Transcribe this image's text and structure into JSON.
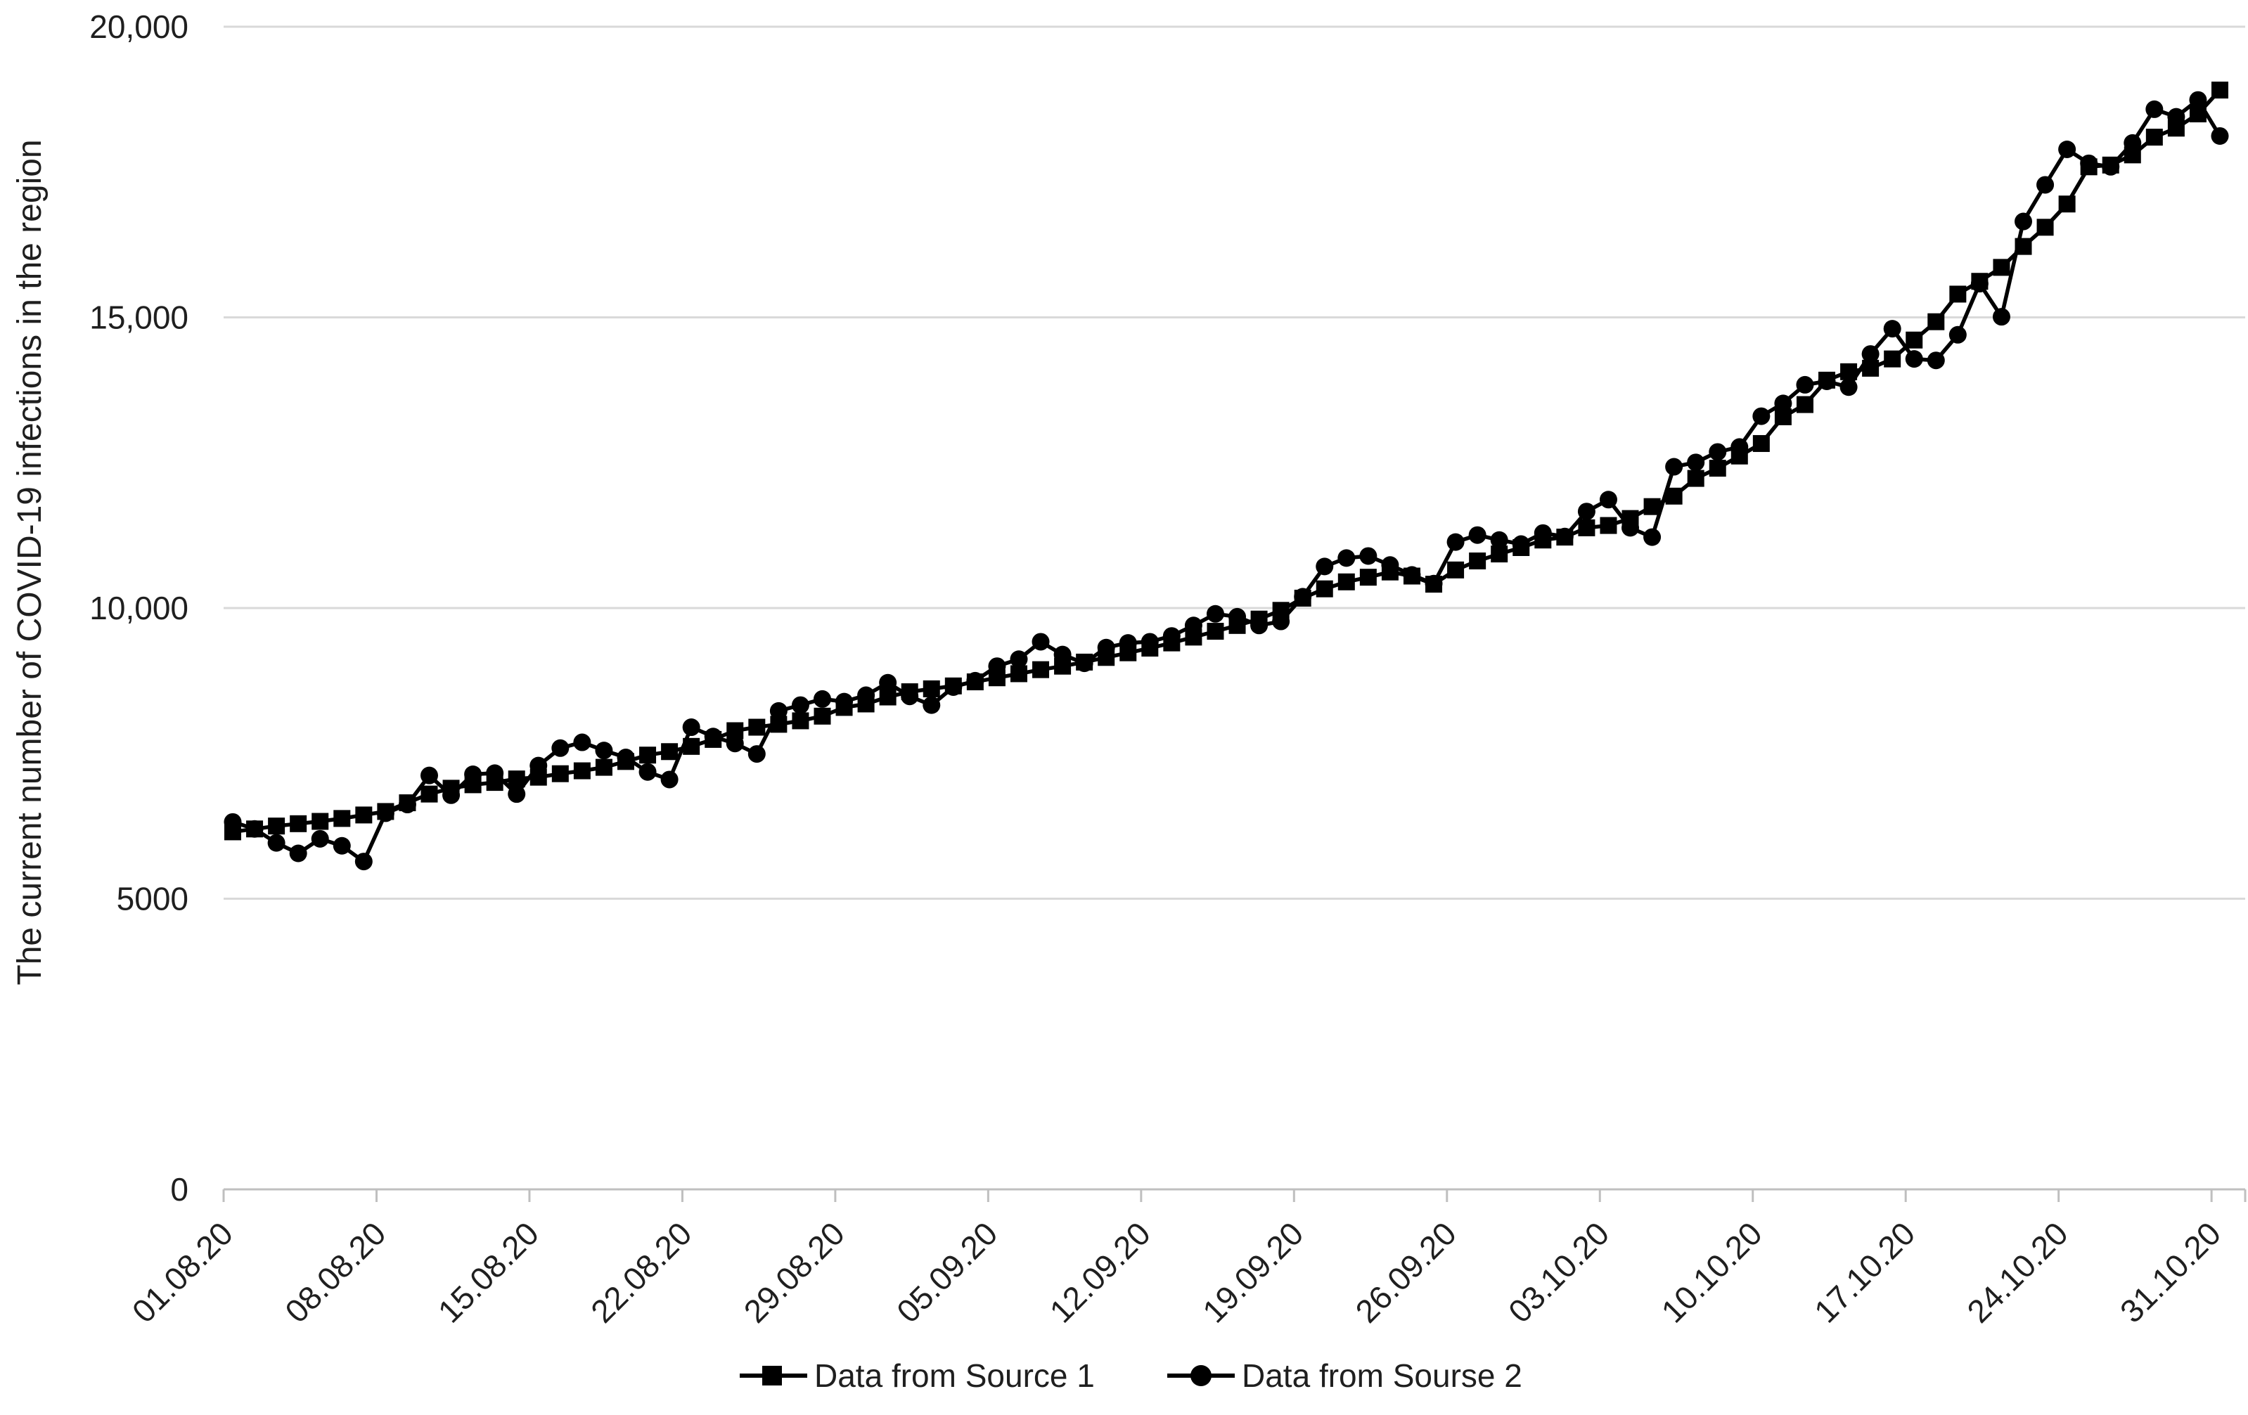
{
  "figure": {
    "background": "#ffffff",
    "series_color": "#000000",
    "gridline_color": "#d9d9d9",
    "axis_color": "#bfbfbf",
    "text_color": "#1f1f1f"
  },
  "legend": {
    "item1": "Data from Source 1",
    "item2": "Data from Sourse 2",
    "item1_marker": "square-icon",
    "item2_marker": "circle-icon"
  },
  "chart_data": {
    "type": "line",
    "title": "",
    "xlabel": "",
    "ylabel": "The current number of COVID-19 infections in the region",
    "ylim": [
      0,
      20000
    ],
    "grid": "horizontal",
    "legend_position": "bottom-center",
    "y_ticks": [
      {
        "value": 0,
        "label": "0"
      },
      {
        "value": 5000,
        "label": "5000"
      },
      {
        "value": 10000,
        "label": "10,000"
      },
      {
        "value": 15000,
        "label": "15,000"
      },
      {
        "value": 20000,
        "label": "20,000"
      }
    ],
    "x_tick_labels": [
      "01.08.20",
      "08.08.20",
      "15.08.20",
      "22.08.20",
      "29.08.20",
      "05.09.20",
      "12.09.20",
      "19.09.20",
      "26.09.20",
      "03.10.20",
      "10.10.20",
      "17.10.20",
      "24.10.20",
      "31.10.20"
    ],
    "x_tick_interval_days": 7,
    "x": [
      "01.08.20",
      "02.08.20",
      "03.08.20",
      "04.08.20",
      "05.08.20",
      "06.08.20",
      "07.08.20",
      "08.08.20",
      "09.08.20",
      "10.08.20",
      "11.08.20",
      "12.08.20",
      "13.08.20",
      "14.08.20",
      "15.08.20",
      "16.08.20",
      "17.08.20",
      "18.08.20",
      "19.08.20",
      "20.08.20",
      "21.08.20",
      "22.08.20",
      "23.08.20",
      "24.08.20",
      "25.08.20",
      "26.08.20",
      "27.08.20",
      "28.08.20",
      "29.08.20",
      "30.08.20",
      "31.08.20",
      "01.09.20",
      "02.09.20",
      "03.09.20",
      "04.09.20",
      "05.09.20",
      "06.09.20",
      "07.09.20",
      "08.09.20",
      "09.09.20",
      "10.09.20",
      "11.09.20",
      "12.09.20",
      "13.09.20",
      "14.09.20",
      "15.09.20",
      "16.09.20",
      "17.09.20",
      "18.09.20",
      "19.09.20",
      "20.09.20",
      "21.09.20",
      "22.09.20",
      "23.09.20",
      "24.09.20",
      "25.09.20",
      "26.09.20",
      "27.09.20",
      "28.09.20",
      "29.09.20",
      "30.09.20",
      "01.10.20",
      "02.10.20",
      "03.10.20",
      "04.10.20",
      "05.10.20",
      "06.10.20",
      "07.10.20",
      "08.10.20",
      "09.10.20",
      "10.10.20",
      "11.10.20",
      "12.10.20",
      "13.10.20",
      "14.10.20",
      "15.10.20",
      "16.10.20",
      "17.10.20",
      "18.10.20",
      "19.10.20",
      "20.10.20",
      "21.10.20",
      "22.10.20",
      "23.10.20",
      "24.10.20",
      "25.10.20",
      "26.10.20",
      "27.10.20",
      "28.10.20",
      "29.10.20",
      "30.10.20",
      "31.10.20"
    ],
    "series": [
      {
        "name": "Data from Source 1",
        "marker": "square",
        "color": "#000000",
        "values": [
          6150,
          6200,
          6250,
          6290,
          6330,
          6380,
          6440,
          6500,
          6650,
          6800,
          6900,
          6960,
          7000,
          7060,
          7090,
          7150,
          7200,
          7260,
          7360,
          7470,
          7530,
          7620,
          7740,
          7890,
          7950,
          8000,
          8060,
          8140,
          8290,
          8350,
          8470,
          8560,
          8610,
          8660,
          8730,
          8800,
          8870,
          8940,
          9000,
          9070,
          9150,
          9230,
          9310,
          9400,
          9500,
          9600,
          9700,
          9810,
          9960,
          10170,
          10330,
          10450,
          10530,
          10620,
          10550,
          10410,
          10655,
          10810,
          10930,
          11040,
          11170,
          11220,
          11380,
          11420,
          11540,
          11745,
          11925,
          12230,
          12405,
          12615,
          12830,
          13290,
          13500,
          13920,
          14065,
          14125,
          14285,
          14610,
          14925,
          15400,
          15620,
          15860,
          16220,
          16550,
          16950,
          17590,
          17620,
          17795,
          18100,
          18255,
          18500,
          18910
        ]
      },
      {
        "name": "Data from Sourse 2",
        "marker": "circle",
        "color": "#000000",
        "values": [
          6320,
          6200,
          5960,
          5780,
          6030,
          5910,
          5640,
          6470,
          6620,
          7120,
          6780,
          7140,
          7160,
          6800,
          7290,
          7590,
          7690,
          7550,
          7430,
          7180,
          7050,
          7950,
          7790,
          7670,
          7490,
          8230,
          8330,
          8435,
          8390,
          8500,
          8715,
          8480,
          8330,
          8640,
          8750,
          9000,
          9120,
          9420,
          9200,
          9050,
          9320,
          9400,
          9420,
          9520,
          9700,
          9900,
          9850,
          9700,
          9770,
          10195,
          10715,
          10860,
          10895,
          10740,
          10570,
          10420,
          11135,
          11255,
          11170,
          11100,
          11290,
          11230,
          11660,
          11865,
          11380,
          11220,
          12430,
          12505,
          12685,
          12770,
          13300,
          13520,
          13840,
          13900,
          13800,
          14370,
          14805,
          14285,
          14260,
          14700,
          15580,
          15010,
          16650,
          17280,
          17890,
          17650,
          17590,
          18000,
          18580,
          18450,
          18740,
          18120
        ]
      }
    ]
  }
}
